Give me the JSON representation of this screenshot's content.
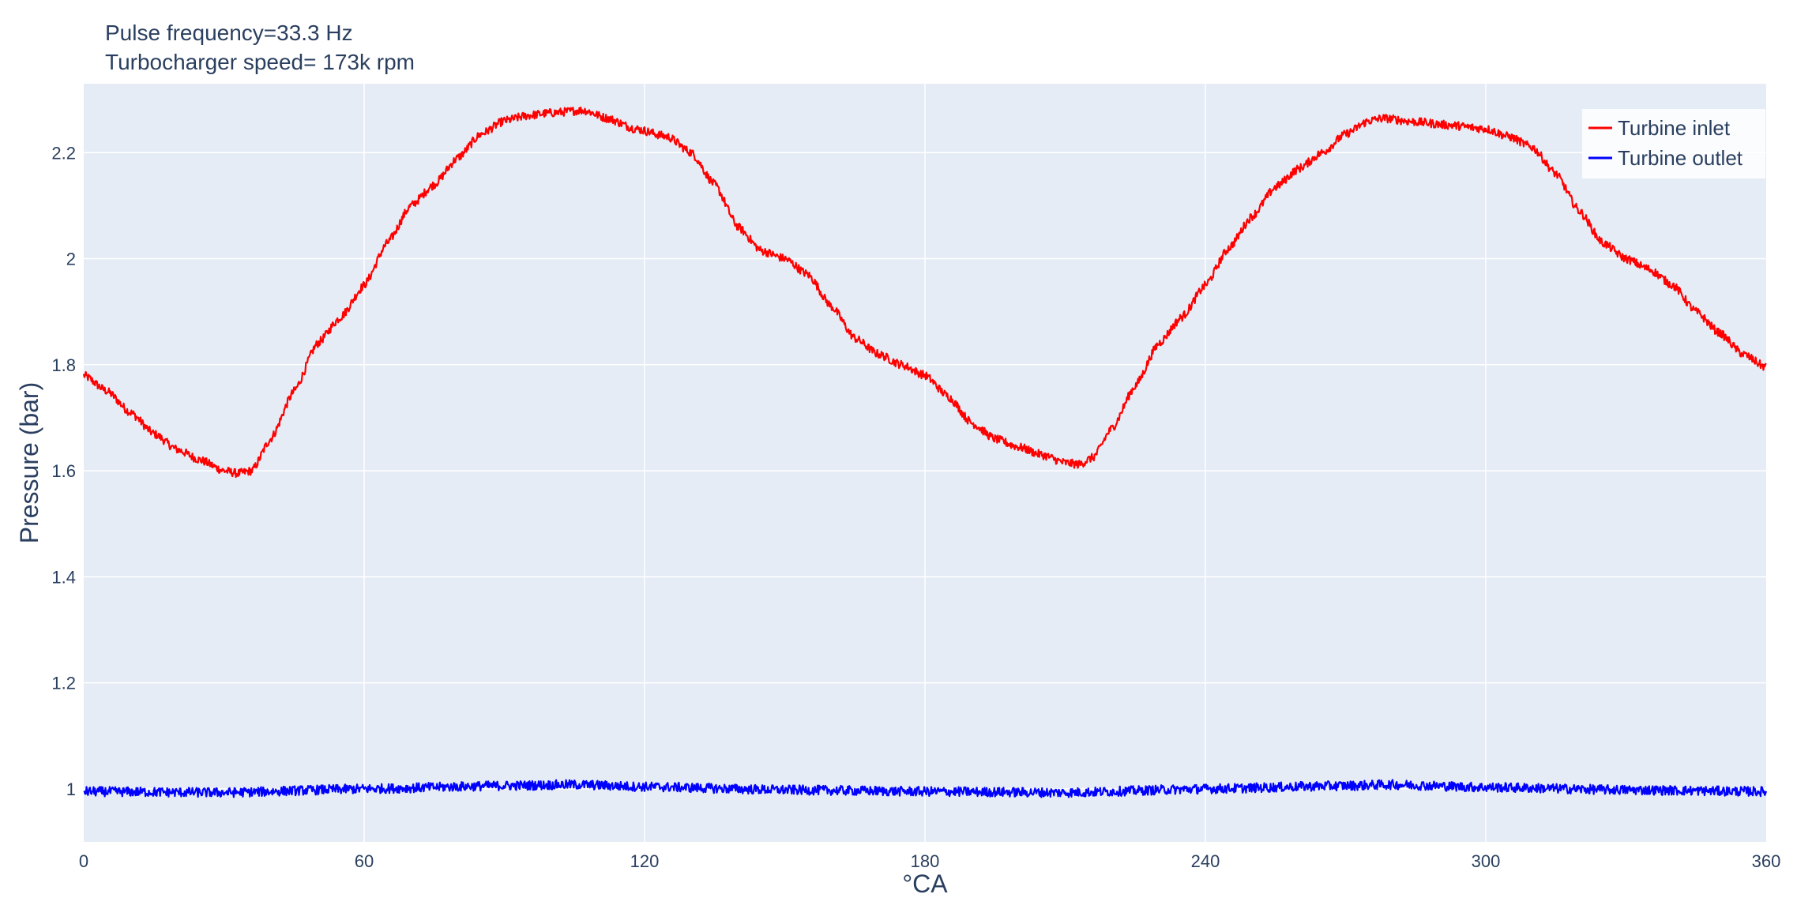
{
  "chart_data": {
    "type": "line",
    "title_lines": [
      "Pulse frequency=33.3 Hz",
      "Turbocharger speed= 173k rpm"
    ],
    "xlabel": "°CA",
    "ylabel": "Pressure (bar)",
    "xlim": [
      0,
      360
    ],
    "ylim": [
      0.9,
      2.33
    ],
    "xticks": [
      0,
      60,
      120,
      180,
      240,
      300,
      360
    ],
    "xtick_labels": [
      "0",
      "60",
      "120",
      "180",
      "240",
      "300",
      "360"
    ],
    "yticks": [
      1,
      1.2,
      1.4,
      1.6,
      1.8,
      2,
      2.2
    ],
    "ytick_labels": [
      "1",
      "1.2",
      "1.4",
      "1.6",
      "1.8",
      "2",
      "2.2"
    ],
    "grid": true,
    "plot_bgcolor": "#e5ecf6",
    "gridcolor": "#ffffff",
    "legend_position": "top-right",
    "series": [
      {
        "name": "Turbine inlet",
        "color": "#ff0000",
        "x": [
          0,
          5,
          10,
          15,
          20,
          25,
          30,
          33,
          36,
          40,
          45,
          50,
          55,
          60,
          65,
          70,
          75,
          80,
          85,
          90,
          95,
          100,
          107,
          112,
          118,
          125,
          130,
          135,
          140,
          145,
          150,
          155,
          160,
          165,
          170,
          175,
          180,
          185,
          190,
          195,
          200,
          205,
          210,
          213,
          216,
          220,
          225,
          230,
          235,
          240,
          245,
          250,
          255,
          260,
          265,
          270,
          275,
          278,
          285,
          292,
          300,
          305,
          310,
          315,
          320,
          325,
          330,
          335,
          340,
          345,
          350,
          355,
          360
        ],
        "y": [
          1.78,
          1.75,
          1.71,
          1.67,
          1.64,
          1.62,
          1.6,
          1.595,
          1.6,
          1.66,
          1.75,
          1.84,
          1.89,
          1.95,
          2.03,
          2.1,
          2.14,
          2.19,
          2.235,
          2.26,
          2.27,
          2.275,
          2.28,
          2.265,
          2.245,
          2.23,
          2.2,
          2.14,
          2.06,
          2.015,
          2.0,
          1.97,
          1.91,
          1.85,
          1.82,
          1.8,
          1.78,
          1.74,
          1.69,
          1.66,
          1.645,
          1.63,
          1.615,
          1.612,
          1.625,
          1.68,
          1.76,
          1.84,
          1.89,
          1.95,
          2.02,
          2.08,
          2.135,
          2.17,
          2.2,
          2.235,
          2.26,
          2.265,
          2.258,
          2.252,
          2.245,
          2.23,
          2.21,
          2.16,
          2.09,
          2.03,
          2.0,
          1.98,
          1.95,
          1.9,
          1.86,
          1.82,
          1.795
        ],
        "noise": 0.008
      },
      {
        "name": "Turbine outlet",
        "color": "#0000ff",
        "x": [
          0,
          30,
          60,
          90,
          105,
          120,
          150,
          180,
          210,
          240,
          270,
          280,
          300,
          330,
          360
        ],
        "y": [
          0.995,
          0.993,
          1.0,
          1.006,
          1.008,
          1.004,
          0.998,
          0.995,
          0.993,
          1.0,
          1.006,
          1.008,
          1.003,
          0.998,
          0.995
        ],
        "noise": 0.009
      }
    ]
  }
}
